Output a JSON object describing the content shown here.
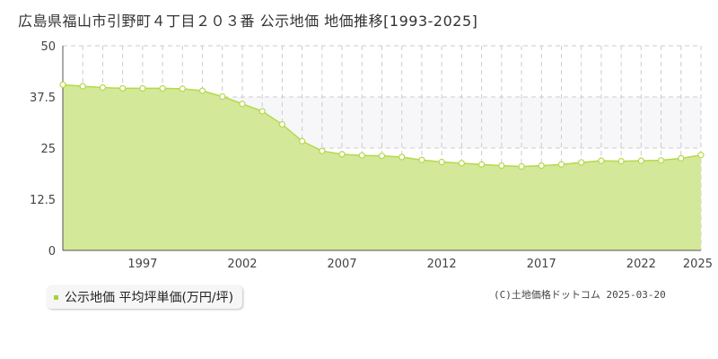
{
  "title": "広島県福山市引野町４丁目２０３番 公示地価 地価推移[1993-2025]",
  "legend_label": "公示地価 平均坪単価(万円/坪)",
  "copyright": "(C)土地価格ドットコム 2025-03-20",
  "colors": {
    "fill": "#d4e89a",
    "line": "#b5d94a",
    "marker_stroke": "#b5d94a",
    "band": "#f7f7fa",
    "grid": "#cccccc",
    "legend_marker": "#a8d23a"
  },
  "chart_data": {
    "type": "area",
    "x": [
      1993,
      1994,
      1995,
      1996,
      1997,
      1998,
      1999,
      2000,
      2001,
      2002,
      2003,
      2004,
      2005,
      2006,
      2007,
      2008,
      2009,
      2010,
      2011,
      2012,
      2013,
      2014,
      2015,
      2016,
      2017,
      2018,
      2019,
      2020,
      2021,
      2022,
      2023,
      2024,
      2025
    ],
    "series": [
      {
        "values": [
          40.5,
          40.1,
          39.8,
          39.6,
          39.6,
          39.6,
          39.5,
          39.0,
          37.6,
          35.8,
          34.0,
          30.8,
          26.7,
          24.3,
          23.5,
          23.2,
          23.1,
          22.8,
          22.1,
          21.6,
          21.3,
          21.0,
          20.7,
          20.5,
          20.7,
          21.0,
          21.5,
          21.9,
          21.8,
          21.9,
          22.0,
          22.5,
          23.3
        ]
      }
    ],
    "xticks": [
      "1997",
      "2002",
      "2007",
      "2012",
      "2017",
      "2022",
      "2025"
    ],
    "yticks": [
      "0",
      "12.5",
      "25",
      "37.5",
      "50"
    ],
    "ylim": [
      0,
      50
    ],
    "xlim": [
      1993,
      2025
    ],
    "band_range": [
      25,
      37.5
    ],
    "grid": true,
    "legend_position": "bottom-left"
  }
}
